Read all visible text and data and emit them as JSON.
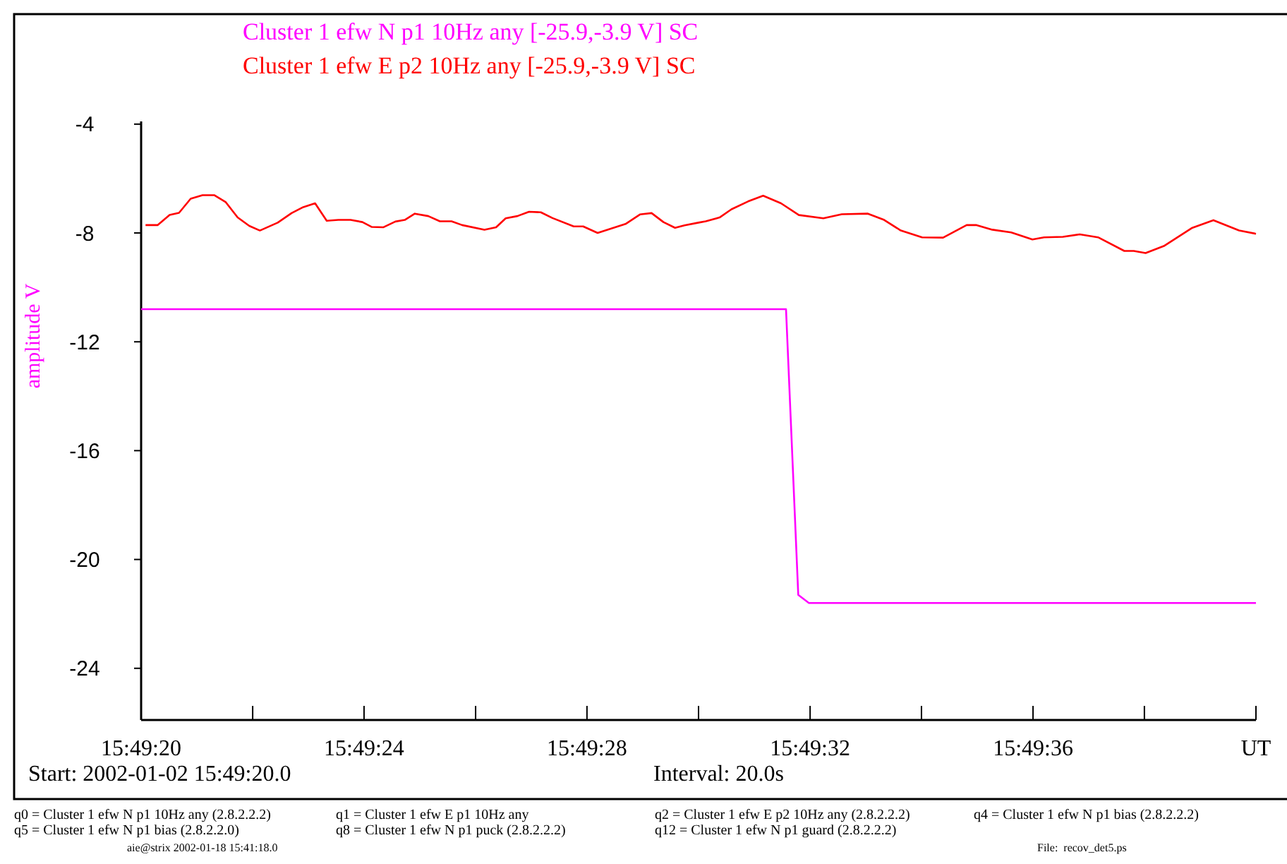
{
  "chart_data": {
    "type": "line",
    "ylabel": "amplitude V",
    "legend": "top",
    "marker": "none",
    "line_style": "solid",
    "grid": false,
    "xlim": [
      15.822222,
      15.827778
    ],
    "xticks": [
      {
        "value": 15.822222,
        "label": "15:49:20"
      },
      {
        "value": 15.822778,
        "label": null
      },
      {
        "value": 15.823333,
        "label": "15:49:24"
      },
      {
        "value": 15.823889,
        "label": null
      },
      {
        "value": 15.824444,
        "label": "15:49:28"
      },
      {
        "value": 15.825,
        "label": null
      },
      {
        "value": 15.825556,
        "label": "15:49:32"
      },
      {
        "value": 15.826111,
        "label": null
      },
      {
        "value": 15.826667,
        "label": "15:49:36"
      },
      {
        "value": 15.827222,
        "label": null
      },
      {
        "value": 15.827778,
        "label": "UT"
      }
    ],
    "ylim": [
      -25.9,
      -3.9
    ],
    "yticks": [
      -4,
      -8,
      -12,
      -16,
      -20,
      -24
    ],
    "series": [
      {
        "name": "Cluster 1 efw N p1 10Hz any [-25.9,-3.9 V] SC",
        "color": "#ff00ff",
        "x": [
          15.822222,
          15.825436,
          15.825497,
          15.82555,
          15.827778
        ],
        "values": [
          -10.8,
          -10.8,
          -21.3,
          -21.6,
          -21.6
        ]
      },
      {
        "name": "Cluster 1 efw E p2 10Hz any [-25.9,-3.9 V] SC",
        "color": "#ff0000",
        "x": [
          15.822244,
          15.822305,
          15.822364,
          15.822411,
          15.822469,
          15.822528,
          15.822586,
          15.822644,
          15.822703,
          15.822761,
          15.822814,
          15.822903,
          15.822972,
          15.82303,
          15.823089,
          15.823147,
          15.823205,
          15.823266,
          15.823325,
          15.823372,
          15.82343,
          15.823489,
          15.823536,
          15.823586,
          15.823653,
          15.823711,
          15.823769,
          15.823822,
          15.823933,
          15.823991,
          15.824039,
          15.824097,
          15.824155,
          15.824214,
          15.824272,
          15.824378,
          15.824425,
          15.824497,
          15.824636,
          15.824708,
          15.824766,
          15.824825,
          15.824883,
          15.82493,
          15.825,
          15.825036,
          15.825105,
          15.825164,
          15.825247,
          15.825322,
          15.825411,
          15.8255,
          15.825622,
          15.825714,
          15.825844,
          15.825925,
          15.826008,
          15.826114,
          15.826219,
          15.826336,
          15.826383,
          15.826464,
          15.826558,
          15.826664,
          15.826722,
          15.826816,
          15.8269,
          15.826991,
          15.827122,
          15.827169,
          15.827228,
          15.827319,
          15.827461,
          15.827566,
          15.827694,
          15.827778
        ],
        "values": [
          -7.71,
          -7.71,
          -7.34,
          -7.26,
          -6.74,
          -6.61,
          -6.61,
          -6.87,
          -7.43,
          -7.74,
          -7.91,
          -7.62,
          -7.27,
          -7.05,
          -6.91,
          -7.55,
          -7.52,
          -7.52,
          -7.6,
          -7.78,
          -7.79,
          -7.58,
          -7.52,
          -7.29,
          -7.38,
          -7.57,
          -7.57,
          -7.71,
          -7.88,
          -7.79,
          -7.46,
          -7.38,
          -7.22,
          -7.24,
          -7.45,
          -7.76,
          -7.76,
          -8.0,
          -7.67,
          -7.32,
          -7.27,
          -7.6,
          -7.81,
          -7.72,
          -7.62,
          -7.57,
          -7.43,
          -7.13,
          -6.84,
          -6.63,
          -6.91,
          -7.34,
          -7.46,
          -7.31,
          -7.29,
          -7.52,
          -7.91,
          -8.16,
          -8.17,
          -7.71,
          -7.71,
          -7.88,
          -7.98,
          -8.24,
          -8.16,
          -8.14,
          -8.05,
          -8.16,
          -8.66,
          -8.66,
          -8.74,
          -8.48,
          -7.81,
          -7.53,
          -7.91,
          -8.03
        ]
      }
    ],
    "annotations": [
      "Start: 2002-01-02 15:49:20.0",
      "Interval: 20.0s",
      "q0 = Cluster 1 efw N p1 10Hz any (2.8.2.2.2)",
      "q1 = Cluster 1 efw E p1 10Hz any",
      "q2 = Cluster 1 efw E p2 10Hz any (2.8.2.2.2)",
      "q4 = Cluster 1 efw N p1 bias (2.8.2.2.2)",
      "q5 = Cluster 1 efw N p1 bias (2.8.2.2.0)",
      "q8 = Cluster 1 efw N p1 puck (2.8.2.2.2)",
      "q12 = Cluster 1 efw N p1 guard (2.8.2.2.2)",
      "aie@strix 2002-01-18 15:41:18.0",
      "File:  recov_det5.ps"
    ]
  }
}
